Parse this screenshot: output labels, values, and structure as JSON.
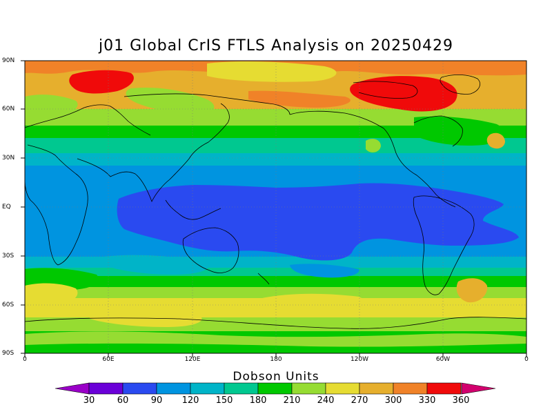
{
  "title": "j01 Global CrIS FTLS Analysis on 20250429",
  "lat_ticks": [
    "90N",
    "60N",
    "30N",
    "EQ",
    "30S",
    "60S",
    "90S"
  ],
  "lon_ticks": [
    "0",
    "60E",
    "120E",
    "180",
    "120W",
    "60W",
    "0"
  ],
  "colorbar": {
    "title": "Dobson Units",
    "labels": [
      "30",
      "60",
      "90",
      "120",
      "150",
      "180",
      "210",
      "240",
      "270",
      "300",
      "330",
      "360"
    ],
    "colors": [
      "#9a00c8",
      "#6a00d8",
      "#2a4af0",
      "#0094e0",
      "#00b4c8",
      "#00c890",
      "#00c800",
      "#96dc32",
      "#e6dc32",
      "#e6af2d",
      "#f08228",
      "#f00a0a",
      "#d2006e"
    ]
  },
  "colors": {
    "ozone_very_low": "#2a4af0",
    "ozone_low": "#0094e0",
    "ozone_mid_low": "#00b4c8",
    "ozone_mid": "#00c890",
    "ozone_210": "#00c800",
    "ozone_240": "#96dc32",
    "ozone_270": "#e6dc32",
    "ozone_300": "#e6af2d",
    "ozone_330": "#f08228",
    "ozone_360": "#f00a0a"
  }
}
